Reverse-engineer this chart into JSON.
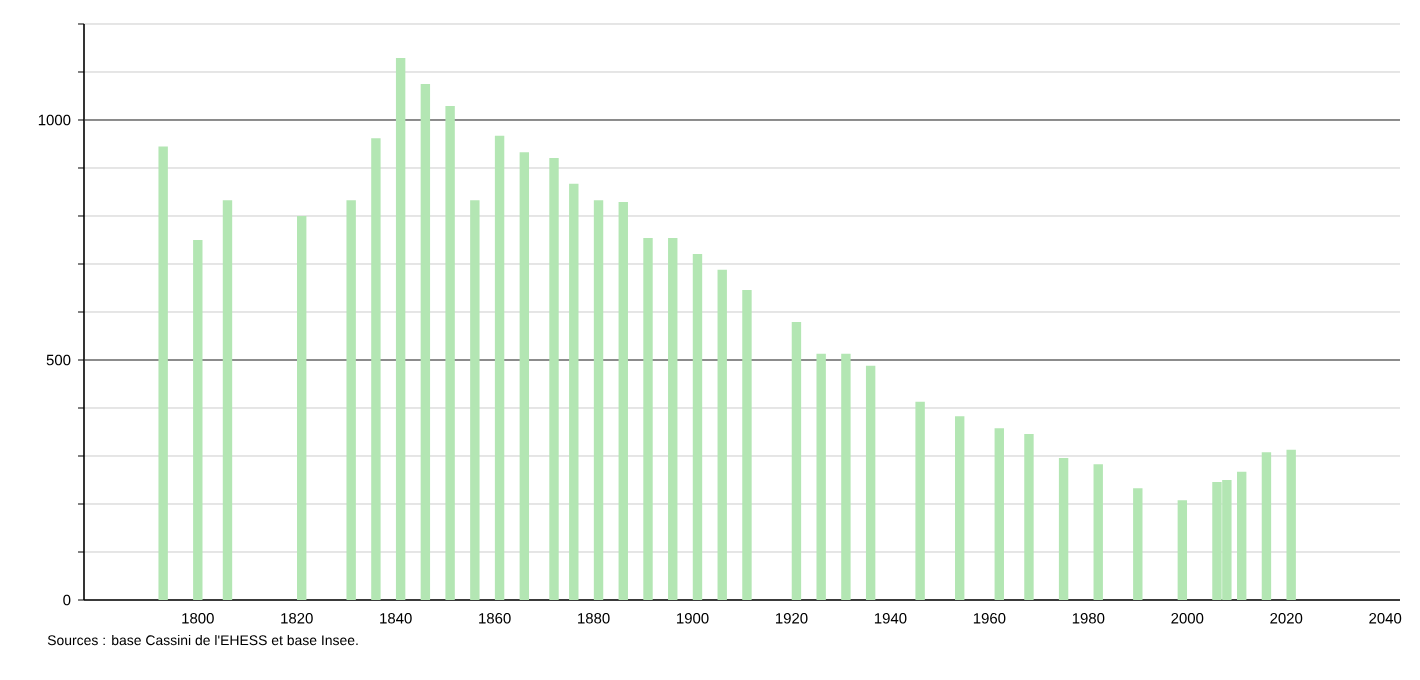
{
  "chart_data": {
    "type": "bar",
    "x": [
      1793,
      1800,
      1806,
      1821,
      1831,
      1836,
      1841,
      1846,
      1851,
      1856,
      1861,
      1866,
      1872,
      1876,
      1881,
      1886,
      1891,
      1896,
      1901,
      1906,
      1911,
      1921,
      1926,
      1931,
      1936,
      1946,
      1954,
      1962,
      1968,
      1975,
      1982,
      1990,
      1999,
      2006,
      2008,
      2011,
      2016,
      2021
    ],
    "values": [
      945,
      750,
      833,
      800,
      833,
      962,
      1129,
      1075,
      1029,
      833,
      967,
      933,
      921,
      867,
      833,
      829,
      754,
      754,
      721,
      688,
      646,
      579,
      513,
      513,
      488,
      413,
      383,
      358,
      346,
      296,
      283,
      233,
      208,
      246,
      250,
      267,
      308,
      313
    ],
    "color": "#b3e6b3",
    "xlim": [
      1777,
      2043
    ],
    "ylim": [
      0,
      1200
    ],
    "xticks": [
      1800,
      1820,
      1840,
      1860,
      1880,
      1900,
      1920,
      1940,
      1960,
      1980,
      2000,
      2020,
      2040
    ],
    "yticks": [
      0,
      {
        "value": 100,
        "label": null
      },
      {
        "value": 200,
        "label": null
      },
      {
        "value": 300,
        "label": null
      },
      {
        "value": 400,
        "label": null
      },
      500,
      {
        "value": 600,
        "label": null
      },
      {
        "value": 700,
        "label": null
      },
      {
        "value": 800,
        "label": null
      },
      {
        "value": 900,
        "label": null
      },
      1000,
      {
        "value": 1100,
        "label": null
      },
      {
        "value": 1200,
        "label": null
      }
    ],
    "grid": "y",
    "annotations": [
      "Sources : base Cassini de l'EHESS et base Insee."
    ]
  }
}
